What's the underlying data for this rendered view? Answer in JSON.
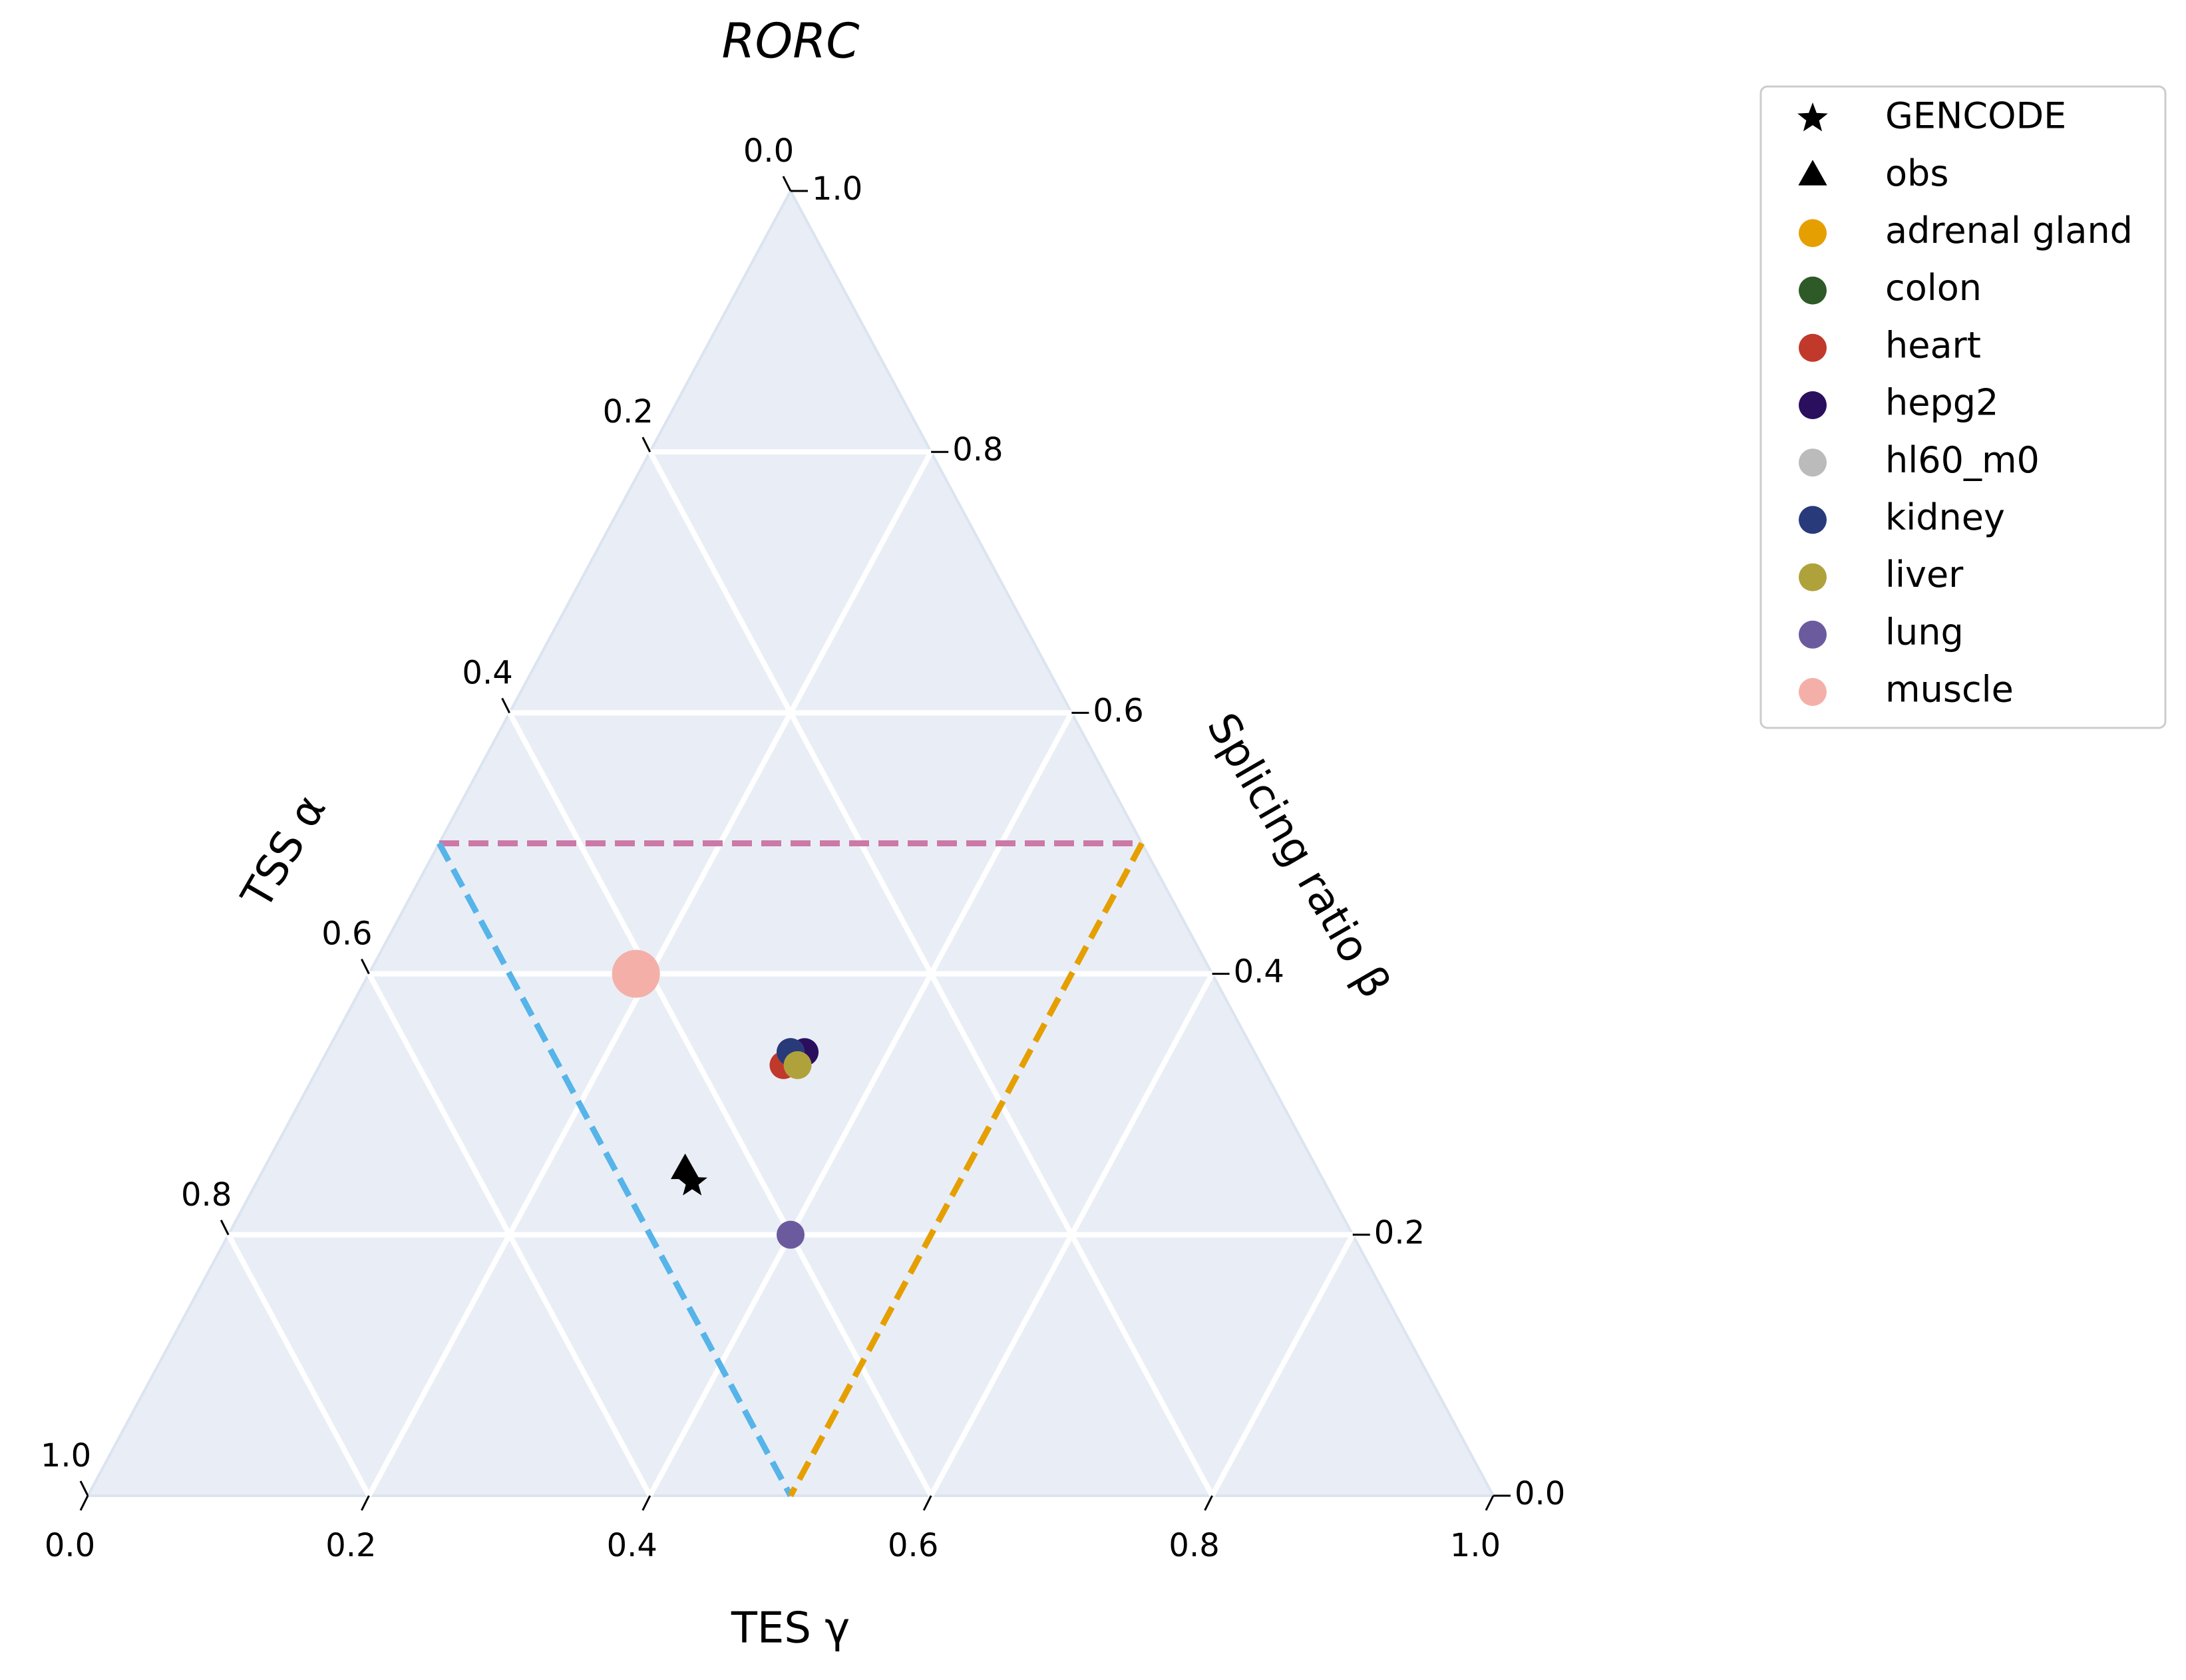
{
  "chart_data": {
    "type": "ternary",
    "title": "RORC",
    "tes_label": "TES γ",
    "splicing_label": "Splicing ratio β",
    "tss_label": "TSS α",
    "tes_ticks": [
      {
        "value": 0,
        "label": "0.0"
      },
      0.2,
      0.4,
      0.6,
      0.8,
      {
        "value": 1,
        "label": "1.0"
      }
    ],
    "splicing_ticks": [
      {
        "value": 0,
        "label": "0.0"
      },
      0.2,
      0.4,
      0.6,
      0.8,
      {
        "value": 1,
        "label": "1.0"
      }
    ],
    "tss_ticks": [
      {
        "value": 0,
        "label": "0.0"
      },
      0.2,
      0.4,
      0.6,
      0.8,
      {
        "value": 1,
        "label": "1.0"
      }
    ],
    "grid": true,
    "background": "#e9eef6",
    "legend": "outside right",
    "boundaries": [
      {
        "axis": "splicing",
        "value": 0.5,
        "color": "#cc79a7"
      },
      {
        "axis": "tss",
        "value": 0.5,
        "color": "#56b4e9"
      },
      {
        "axis": "tes",
        "value": 0.5,
        "color": "#e69f00"
      }
    ],
    "series": [
      {
        "name": "GENCODE",
        "marker": "star",
        "color": "#000000",
        "tes": [
          0.31
        ],
        "splicing": [
          0.24
        ],
        "tss": [
          0.45
        ]
      },
      {
        "name": "obs",
        "marker": "triangle",
        "color": "#000000",
        "tes": [
          0.3
        ],
        "splicing": [
          0.25
        ],
        "tss": [
          0.45
        ]
      },
      {
        "name": "adrenal gland",
        "marker": "circle",
        "color": "#e69f00",
        "tes": [
          0.33
        ],
        "splicing": [
          0.34
        ],
        "tss": [
          0.33
        ]
      },
      {
        "name": "colon",
        "marker": "circle",
        "color": "#2d5a27",
        "tes": [
          0.33
        ],
        "splicing": [
          0.34
        ],
        "tss": [
          0.33
        ]
      },
      {
        "name": "heart",
        "marker": "circle",
        "color": "#c0392b",
        "tes": [
          0.33
        ],
        "splicing": [
          0.33
        ],
        "tss": [
          0.34
        ]
      },
      {
        "name": "hepg2",
        "marker": "circle",
        "color": "#2a0f5f",
        "tes": [
          0.34
        ],
        "splicing": [
          0.34
        ],
        "tss": [
          0.32
        ]
      },
      {
        "name": "hl60_m0",
        "marker": "circle",
        "color": "#bbbbbb",
        "tes": [
          0.33
        ],
        "splicing": [
          0.34
        ],
        "tss": [
          0.33
        ]
      },
      {
        "name": "kidney",
        "marker": "circle",
        "color": "#283a7a",
        "tes": [
          0.33
        ],
        "splicing": [
          0.34
        ],
        "tss": [
          0.33
        ]
      },
      {
        "name": "liver",
        "marker": "circle",
        "color": "#b0a23b",
        "tes": [
          0.34
        ],
        "splicing": [
          0.33
        ],
        "tss": [
          0.33
        ]
      },
      {
        "name": "lung",
        "marker": "circle",
        "color": "#6b5b9e",
        "tes": [
          0.4
        ],
        "splicing": [
          0.2
        ],
        "tss": [
          0.4
        ]
      },
      {
        "name": "muscle",
        "marker": "circle",
        "color": "#f4b0a8",
        "tes": [
          0.19
        ],
        "splicing": [
          0.4
        ],
        "tss": [
          0.41
        ],
        "sizes": [
          36
        ]
      }
    ]
  }
}
